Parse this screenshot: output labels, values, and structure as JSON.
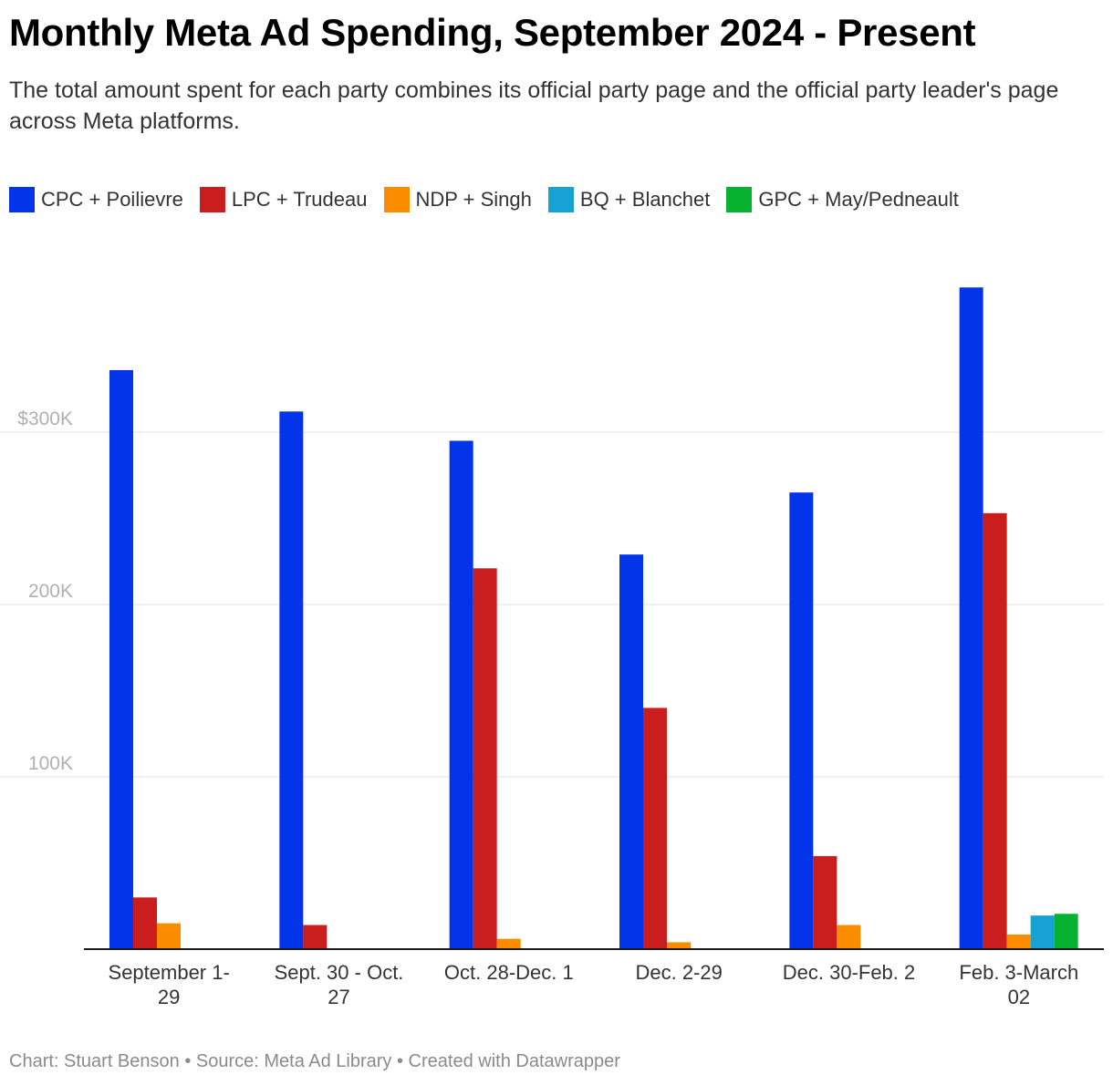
{
  "header": {
    "title": "Monthly Meta Ad Spending, September 2024 - Present",
    "subtitle": "The total amount spent for each party combines its official party page and the official party leader's page across Meta platforms."
  },
  "footer": {
    "text": "Chart: Stuart Benson • Source: Meta Ad Library • Created with Datawrapper"
  },
  "chart_data": {
    "type": "bar",
    "title": "Monthly Meta Ad Spending, September 2024 - Present",
    "xlabel": "",
    "ylabel": "",
    "ylim": [
      0,
      420000
    ],
    "grid": true,
    "legend_position": "top-left",
    "categories": [
      "September 1-\n29",
      "Sept. 30 - Oct.\n27",
      "Oct. 28-Dec. 1",
      "Dec. 2-29",
      "Dec. 30-Feb. 2",
      "Feb. 3-March\n02"
    ],
    "y_ticks": [
      {
        "value": 100000,
        "label": "100K"
      },
      {
        "value": 200000,
        "label": "200K"
      },
      {
        "value": 300000,
        "label": "$300K"
      }
    ],
    "series": [
      {
        "name": "CPC + Poilievre",
        "color": "#0434ea",
        "values": [
          336000,
          312000,
          295000,
          229000,
          265000,
          384000
        ]
      },
      {
        "name": "LPC + Trudeau",
        "color": "#c91d1e",
        "values": [
          30000,
          14000,
          221000,
          140000,
          54000,
          253000
        ]
      },
      {
        "name": "NDP + Singh",
        "color": "#fb8c00",
        "values": [
          15000,
          0,
          6000,
          4000,
          14000,
          8500
        ]
      },
      {
        "name": "BQ + Blanchet",
        "color": "#18a1d3",
        "values": [
          0,
          0,
          0,
          0,
          0,
          19500
        ]
      },
      {
        "name": "GPC + May/Pedneault",
        "color": "#06b230",
        "values": [
          0,
          0,
          0,
          0,
          0,
          20500
        ]
      }
    ]
  }
}
